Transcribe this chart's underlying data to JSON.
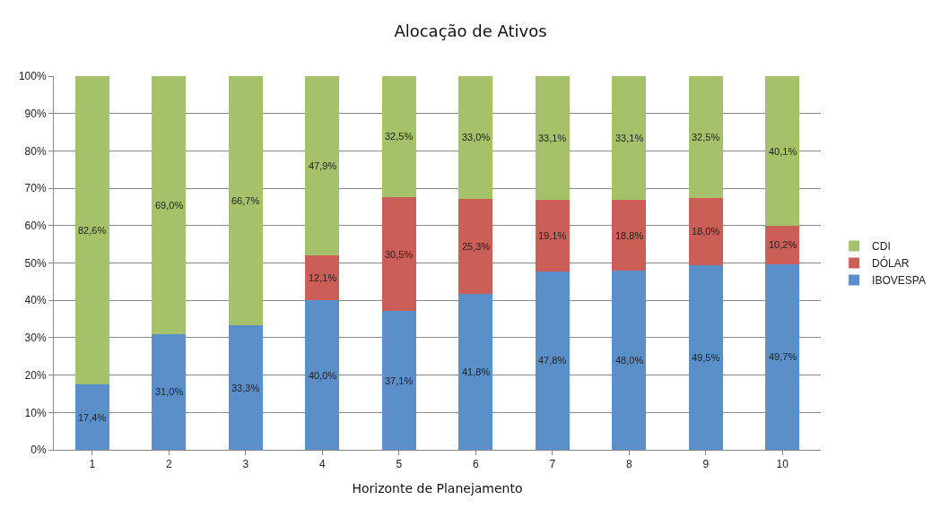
{
  "chart_data": {
    "type": "bar",
    "title": "Alocação de Ativos",
    "xlabel": "Horizonte de Planejamento",
    "categories": [
      "1",
      "2",
      "3",
      "4",
      "5",
      "6",
      "7",
      "8",
      "9",
      "10"
    ],
    "stacked": true,
    "series": [
      {
        "name": "IBOVESPA",
        "color": "#5b8fc9",
        "values": [
          17.4,
          31.0,
          33.3,
          40.0,
          37.1,
          41.8,
          47.8,
          48.0,
          49.5,
          49.7
        ],
        "value_labels": [
          "17,4%",
          "31,0%",
          "33,3%",
          "40,0%",
          "37,1%",
          "41,8%",
          "47,8%",
          "48,0%",
          "49,5%",
          "49,7%"
        ]
      },
      {
        "name": "DÓLAR",
        "color": "#cb5f57",
        "values": [
          null,
          null,
          null,
          12.1,
          30.5,
          25.3,
          19.1,
          18.8,
          18.0,
          10.2
        ],
        "value_labels": [
          null,
          null,
          null,
          "12,1%",
          "30,5%",
          "25,3%",
          "19,1%",
          "18,8%",
          "18,0%",
          "10,2%"
        ]
      },
      {
        "name": "CDI",
        "color": "#a5c26a",
        "values": [
          82.6,
          69.0,
          66.7,
          47.9,
          32.5,
          33.0,
          33.1,
          33.1,
          32.5,
          40.1
        ],
        "value_labels": [
          "82,6%",
          "69,0%",
          "66,7%",
          "47,9%",
          "32,5%",
          "33,0%",
          "33,1%",
          "33,1%",
          "32,5%",
          "40,1%"
        ]
      }
    ],
    "ylim": [
      0,
      100
    ],
    "yticks": [
      {
        "value": 0,
        "label": "0%"
      },
      {
        "value": 10,
        "label": "10%"
      },
      {
        "value": 20,
        "label": "20%"
      },
      {
        "value": 30,
        "label": "30%"
      },
      {
        "value": 40,
        "label": "40%"
      },
      {
        "value": 50,
        "label": "50%"
      },
      {
        "value": 60,
        "label": "60%"
      },
      {
        "value": 70,
        "label": "70%"
      },
      {
        "value": 80,
        "label": "80%"
      },
      {
        "value": 90,
        "label": "90%"
      },
      {
        "value": 100,
        "label": "100%"
      }
    ],
    "grid": "y",
    "legend": "right"
  }
}
